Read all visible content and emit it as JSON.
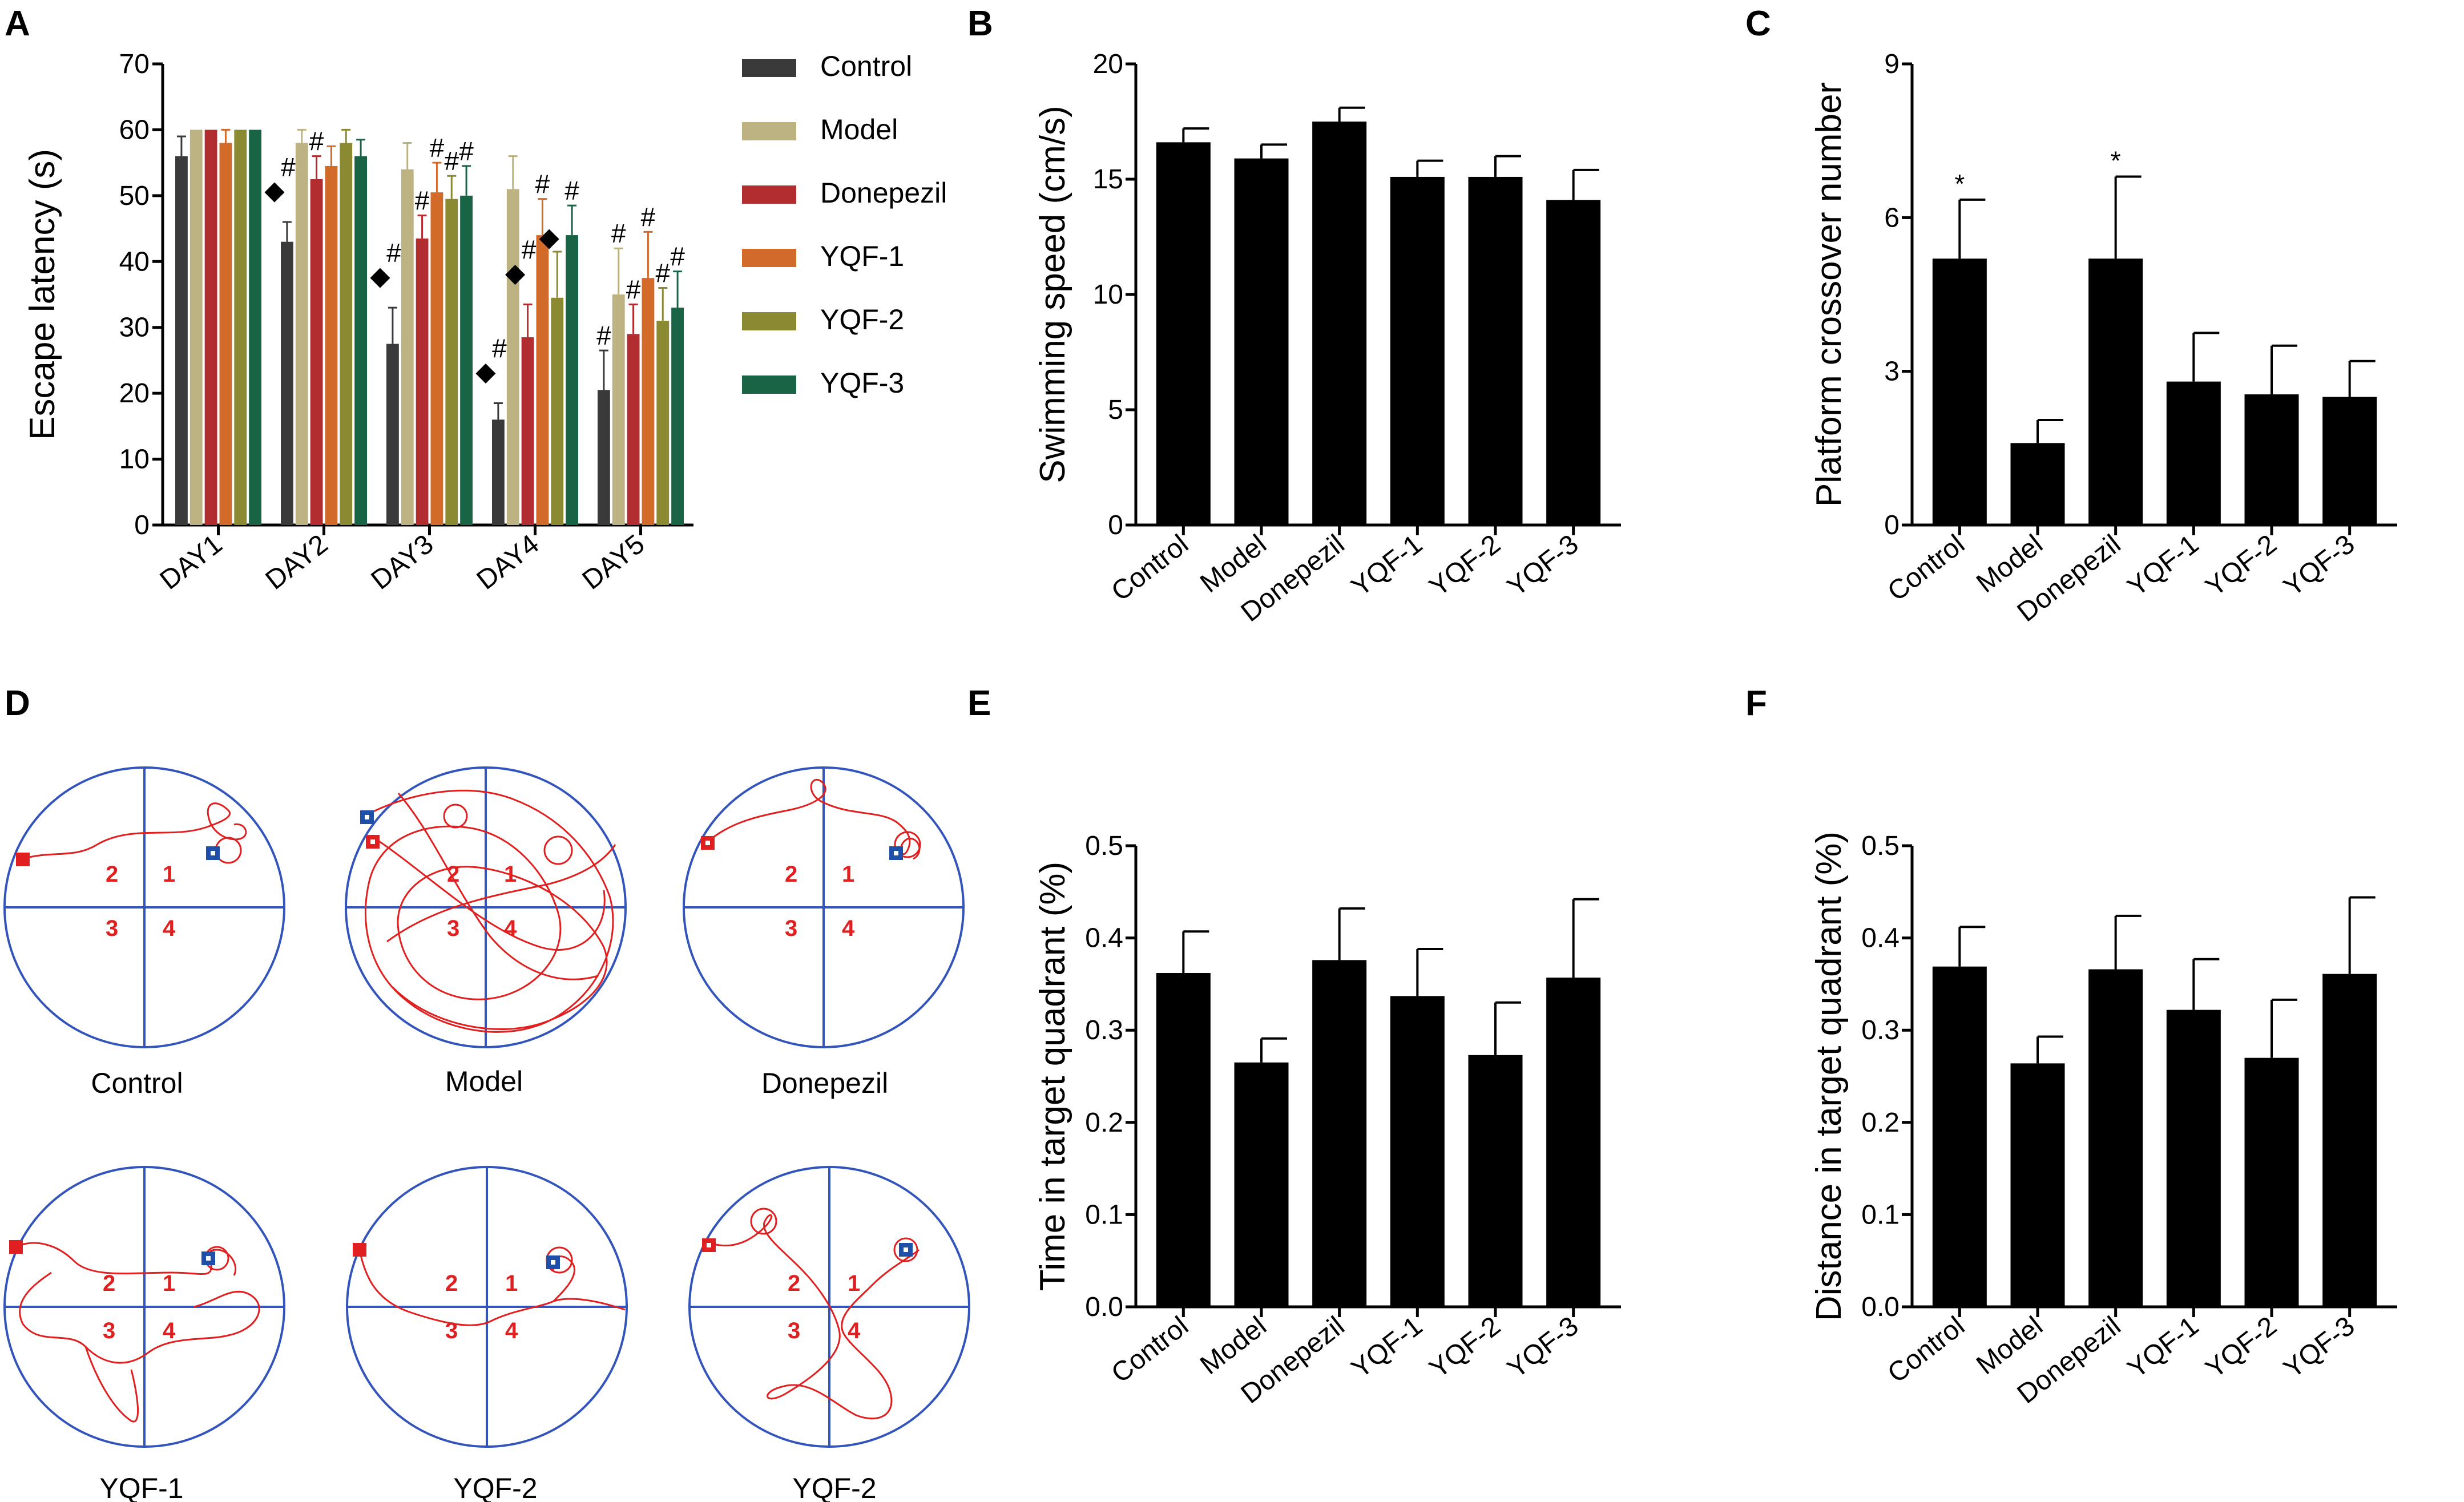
{
  "chart_data": [
    {
      "id": "A",
      "type": "bar",
      "panel_label": "A",
      "ylabel": "Escape latency (s)",
      "xlabel": "",
      "ylim": [
        0,
        70
      ],
      "yticks": [
        0,
        10,
        20,
        30,
        40,
        50,
        60,
        70
      ],
      "categories": [
        "DAY1",
        "DAY2",
        "DAY3",
        "DAY4",
        "DAY5"
      ],
      "legend_position": "right",
      "series": [
        {
          "name": "Control",
          "color": "#3a3a3a",
          "values": [
            56,
            43,
            27.5,
            16,
            20.5
          ],
          "errors": [
            3,
            3,
            5.5,
            2.5,
            6
          ],
          "marks": [
            "",
            "#◆",
            "#◆",
            "#◆",
            "#"
          ]
        },
        {
          "name": "Model",
          "color": "#bdb382",
          "values": [
            60,
            58,
            54,
            51,
            35
          ],
          "errors": [
            0,
            2,
            4,
            5,
            7
          ],
          "marks": [
            "",
            "",
            "",
            "",
            "#"
          ]
        },
        {
          "name": "Donepezil",
          "color": "#b22d30",
          "values": [
            60,
            52.5,
            43.5,
            28.5,
            29
          ],
          "errors": [
            0,
            3.5,
            3.5,
            5,
            4.5
          ],
          "marks": [
            "",
            "#",
            "#",
            "#◆",
            "#"
          ]
        },
        {
          "name": "YQF-1",
          "color": "#d26a2a",
          "values": [
            58,
            54.5,
            50.5,
            44,
            37.5
          ],
          "errors": [
            2,
            3,
            4.5,
            5.5,
            7
          ],
          "marks": [
            "",
            "",
            "#",
            "#",
            "#"
          ]
        },
        {
          "name": "YQF-2",
          "color": "#8b8a32",
          "values": [
            60,
            58,
            49.5,
            34.5,
            31
          ],
          "errors": [
            0,
            2,
            3.5,
            7,
            5
          ],
          "marks": [
            "",
            "",
            "#",
            "◆",
            "#"
          ]
        },
        {
          "name": "YQF-3",
          "color": "#1a6446",
          "values": [
            60,
            56,
            50,
            44,
            33
          ],
          "errors": [
            0,
            2.5,
            4.5,
            4.5,
            5.5
          ],
          "marks": [
            "",
            "",
            "#",
            "#",
            "#"
          ]
        }
      ]
    },
    {
      "id": "B",
      "type": "bar",
      "panel_label": "B",
      "ylabel": "Swimming speed (cm/s)",
      "xlabel": "",
      "ylim": [
        0,
        20
      ],
      "yticks": [
        0,
        5,
        10,
        15,
        20
      ],
      "categories": [
        "Control",
        "Model",
        "Donepezil",
        "YQF-1",
        "YQF-2",
        "YQF-3"
      ],
      "values": [
        16.6,
        15.9,
        17.5,
        15.1,
        15.1,
        14.1
      ],
      "errors": [
        0.6,
        0.6,
        0.6,
        0.7,
        0.9,
        1.3
      ],
      "marks": [
        "",
        "",
        "",
        "",
        "",
        ""
      ]
    },
    {
      "id": "C",
      "type": "bar",
      "panel_label": "C",
      "ylabel": "Platform crossover number",
      "xlabel": "",
      "ylim": [
        0,
        9
      ],
      "yticks": [
        0,
        3,
        6,
        9
      ],
      "categories": [
        "Control",
        "Model",
        "Donepezil",
        "YQF-1",
        "YQF-2",
        "YQF-3"
      ],
      "values": [
        5.2,
        1.6,
        5.2,
        2.8,
        2.55,
        2.5
      ],
      "errors": [
        1.15,
        0.45,
        1.6,
        0.95,
        0.95,
        0.7
      ],
      "marks": [
        "*",
        "",
        "*",
        "",
        "",
        ""
      ]
    },
    {
      "id": "E",
      "type": "bar",
      "panel_label": "E",
      "ylabel": "Time in target quadrant (%)",
      "xlabel": "",
      "ylim": [
        0,
        0.5
      ],
      "yticks": [
        "0.0",
        "0.1",
        "0.2",
        "0.3",
        "0.4",
        "0.5"
      ],
      "categories": [
        "Control",
        "Model",
        "Donepezil",
        "YQF-1",
        "YQF-2",
        "YQF-3"
      ],
      "values": [
        0.362,
        0.265,
        0.376,
        0.337,
        0.273,
        0.357
      ],
      "errors": [
        0.045,
        0.026,
        0.056,
        0.051,
        0.057,
        0.085
      ],
      "marks": [
        "",
        "",
        "",
        "",
        "",
        ""
      ]
    },
    {
      "id": "F",
      "type": "bar",
      "panel_label": "F",
      "ylabel": "Distance in target quadrant (%)",
      "xlabel": "",
      "ylim": [
        0,
        0.5
      ],
      "yticks": [
        "0.0",
        "0.1",
        "0.2",
        "0.3",
        "0.4",
        "0.5"
      ],
      "categories": [
        "Control",
        "Model",
        "Donepezil",
        "YQF-1",
        "YQF-2",
        "YQF-3"
      ],
      "values": [
        0.369,
        0.264,
        0.366,
        0.322,
        0.27,
        0.361
      ],
      "errors": [
        0.043,
        0.029,
        0.058,
        0.055,
        0.063,
        0.083
      ],
      "marks": [
        "",
        "",
        "",
        "",
        "",
        ""
      ]
    }
  ],
  "panel_d": {
    "panel_label": "D",
    "quadrant_numbers": [
      "2",
      "1",
      "3",
      "4"
    ],
    "path_color": "#e02020",
    "circle_color": "#3355bb",
    "start_marker_color": "#e02020",
    "platform_marker_color": "#1f4fa8",
    "mazes": [
      {
        "label": "Control"
      },
      {
        "label": "Model"
      },
      {
        "label": "Donepezil"
      },
      {
        "label": "YQF-1"
      },
      {
        "label": "YQF-2"
      },
      {
        "label": "YQF-2"
      }
    ]
  }
}
